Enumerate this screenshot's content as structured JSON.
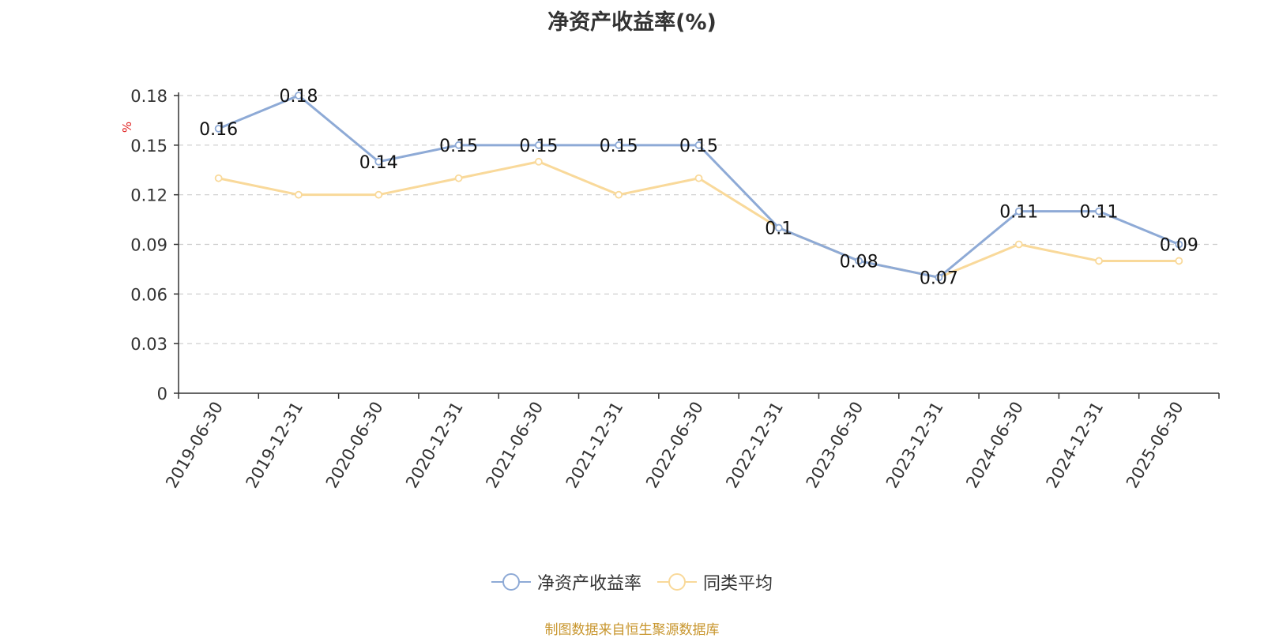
{
  "chart_data": {
    "type": "line",
    "title": "净资产收益率(%)",
    "ylabel": "%",
    "categories": [
      "2019-06-30",
      "2019-12-31",
      "2020-06-30",
      "2020-12-31",
      "2021-06-30",
      "2021-12-31",
      "2022-06-30",
      "2022-12-31",
      "2023-06-30",
      "2023-12-31",
      "2024-06-30",
      "2024-12-31",
      "2025-06-30"
    ],
    "yticks": [
      "0",
      "0.03",
      "0.06",
      "0.09",
      "0.12",
      "0.15",
      "0.18"
    ],
    "ylim": [
      0,
      0.18
    ],
    "grid": true,
    "legend_position": "bottom",
    "series": [
      {
        "name": "净资产收益率",
        "color": "#8eaad6",
        "values": [
          0.16,
          0.18,
          0.14,
          0.15,
          0.15,
          0.15,
          0.15,
          0.1,
          0.08,
          0.07,
          0.11,
          0.11,
          0.09
        ],
        "labels": [
          "0.16",
          "0.18",
          "0.14",
          "0.15",
          "0.15",
          "0.15",
          "0.15",
          "0.1",
          "0.08",
          "0.07",
          "0.11",
          "0.11",
          "0.09"
        ]
      },
      {
        "name": "同类平均",
        "color": "#f9d99a",
        "values": [
          0.13,
          0.12,
          0.12,
          0.13,
          0.14,
          0.12,
          0.13,
          0.1,
          0.08,
          0.07,
          0.09,
          0.08,
          0.08
        ]
      }
    ]
  },
  "source_text": "制图数据来自恒生聚源数据库"
}
